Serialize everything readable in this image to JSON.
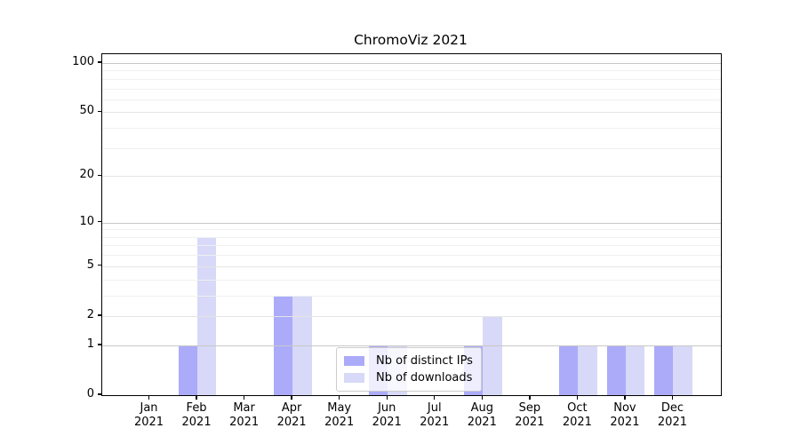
{
  "title": "ChromoViz 2021",
  "chart_data": {
    "type": "bar",
    "title": "ChromoViz 2021",
    "categories": [
      "Jan",
      "Feb",
      "Mar",
      "Apr",
      "May",
      "Jun",
      "Jul",
      "Aug",
      "Sep",
      "Oct",
      "Nov",
      "Dec"
    ],
    "category_year": "2021",
    "series": [
      {
        "name": "Nb of distinct IPs",
        "color": "#ababfa",
        "values": [
          0,
          1,
          0,
          3,
          0,
          1,
          0,
          1,
          0,
          1,
          1,
          1
        ]
      },
      {
        "name": "Nb of downloads",
        "color": "#d8d8f8",
        "values": [
          0,
          8,
          0,
          3,
          0,
          1,
          0,
          2,
          0,
          1,
          1,
          1
        ]
      }
    ],
    "yscale": "log10(1+v)",
    "ylim": [
      0,
      113
    ],
    "yticks": [
      0,
      1,
      2,
      5,
      10,
      20,
      50,
      100
    ],
    "ytick_tiers": {
      "major": [
        1,
        10,
        100
      ],
      "mid": [
        2,
        5,
        20,
        50
      ],
      "minor": [
        3,
        4,
        6,
        7,
        8,
        9,
        30,
        40,
        60,
        70,
        80,
        90
      ]
    },
    "grid": true,
    "legend_position": "lower-center-inside"
  },
  "colors": {
    "background": "#ffffff",
    "axis": "#000000",
    "grid_major": "#c8c8c8",
    "grid_mid": "#e4e4e4",
    "grid_minor": "#f0f0f0",
    "legend_border": "#cccccc",
    "text": "#000000"
  }
}
